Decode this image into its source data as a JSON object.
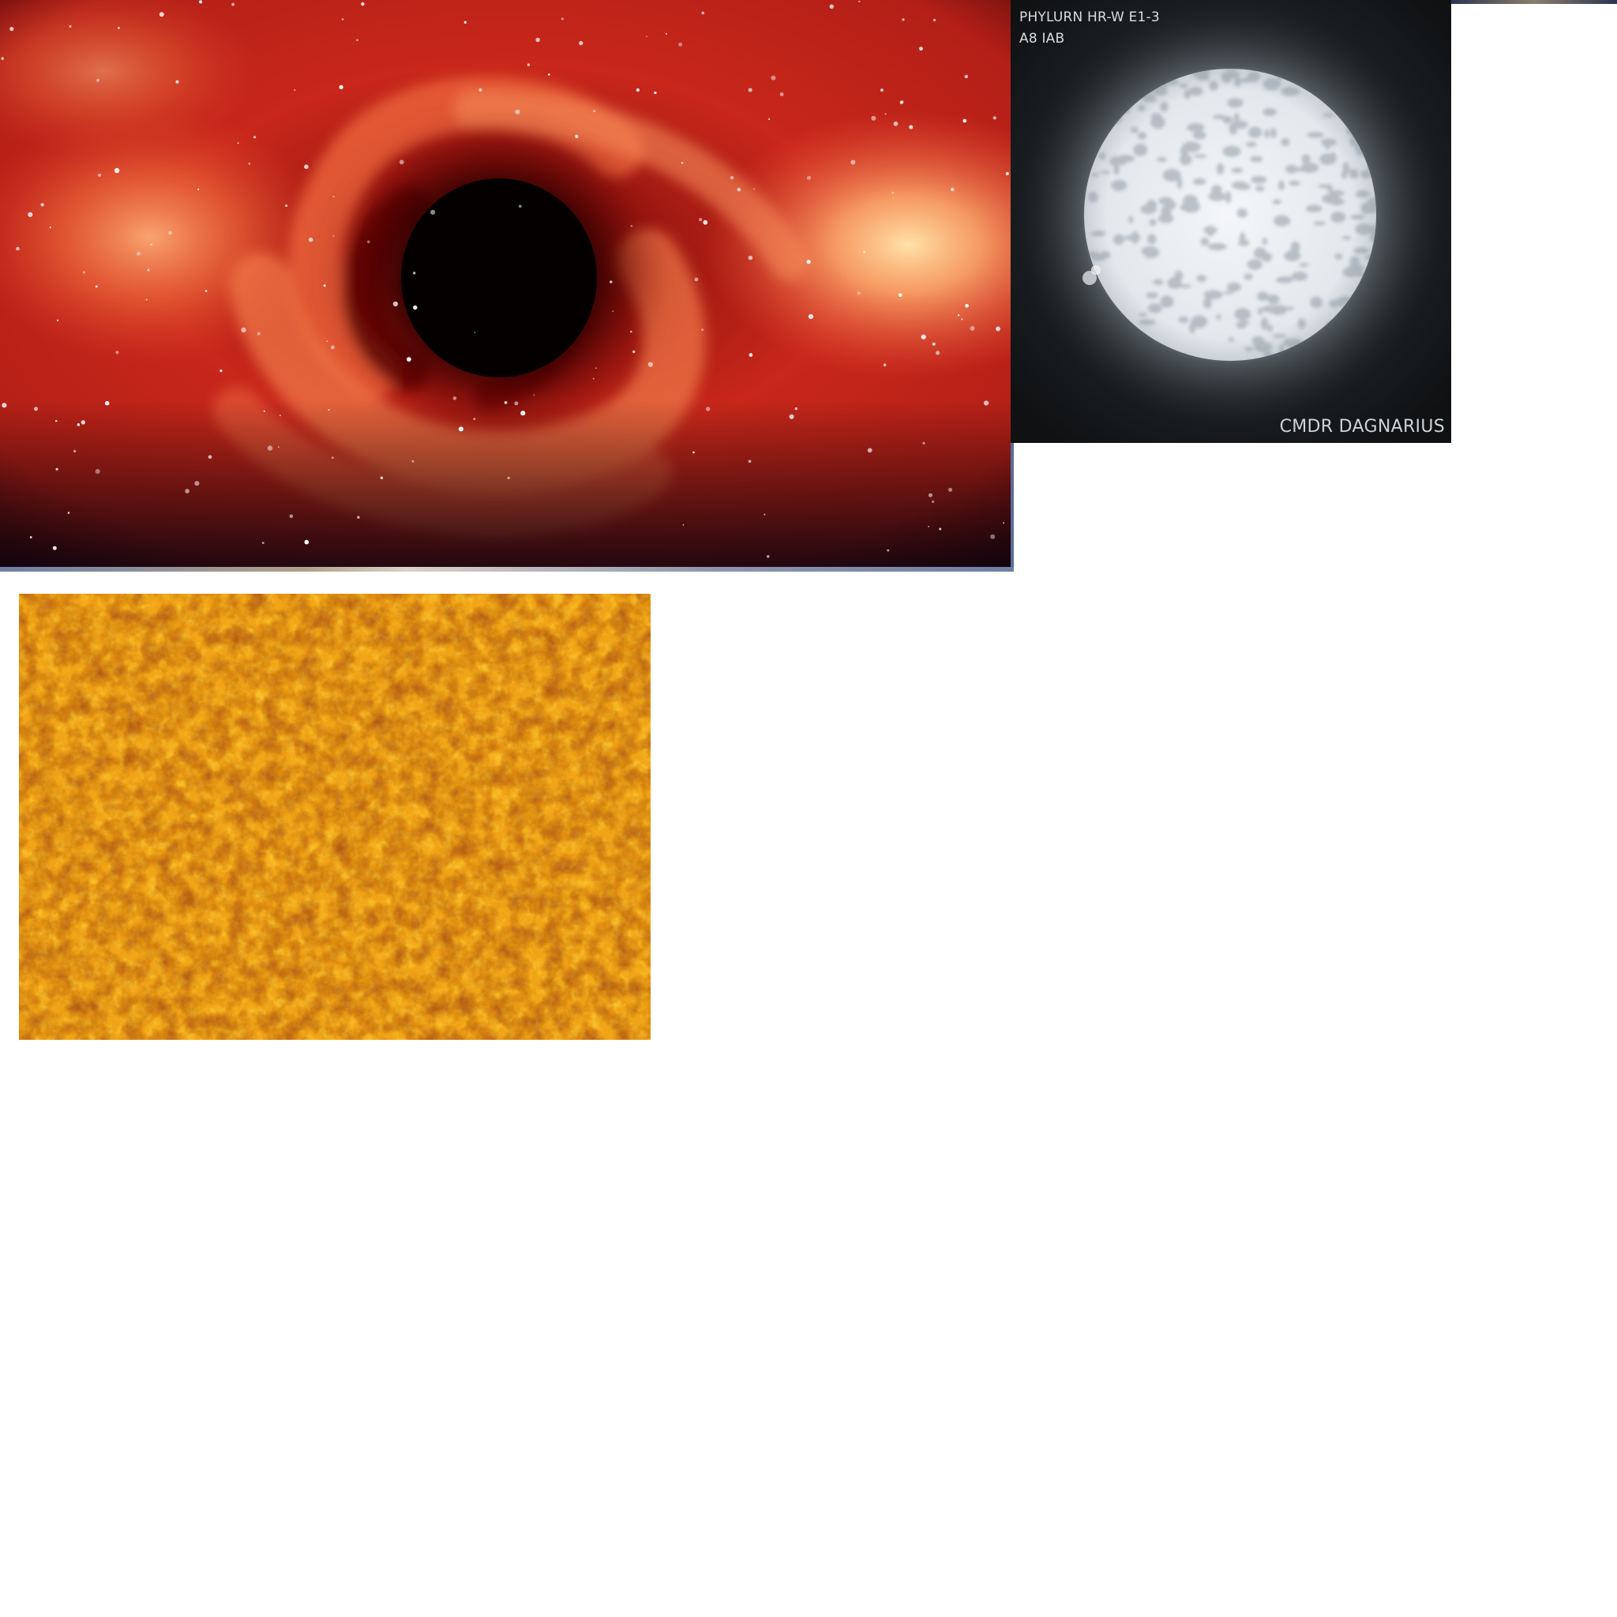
{
  "images": {
    "black_hole": {
      "subject": "black hole with red accretion swirl against a starfield",
      "colors": {
        "shadow": "#050000",
        "disk_inner": "#b81c12",
        "disk_outer": "#f26a3c",
        "glow": "#ffd9a0",
        "stars": "#ffffff"
      }
    },
    "star_screenshot": {
      "subject": "white supergiant star",
      "name_label": "PHYLURN HR-W E1-3",
      "class_label": "A8 IAB",
      "credit_label": "CMDR DAGNARIUS",
      "colors": {
        "background": "#111416",
        "star_surface": "#e8ecef",
        "star_mottle": "#9aa2ab",
        "text": "#d9dde0"
      }
    },
    "sun_texture": {
      "subject": "orange solar surface texture",
      "colors": {
        "base": "#f0a615",
        "light": "#ffd23a",
        "dark": "#a84a10"
      }
    }
  }
}
